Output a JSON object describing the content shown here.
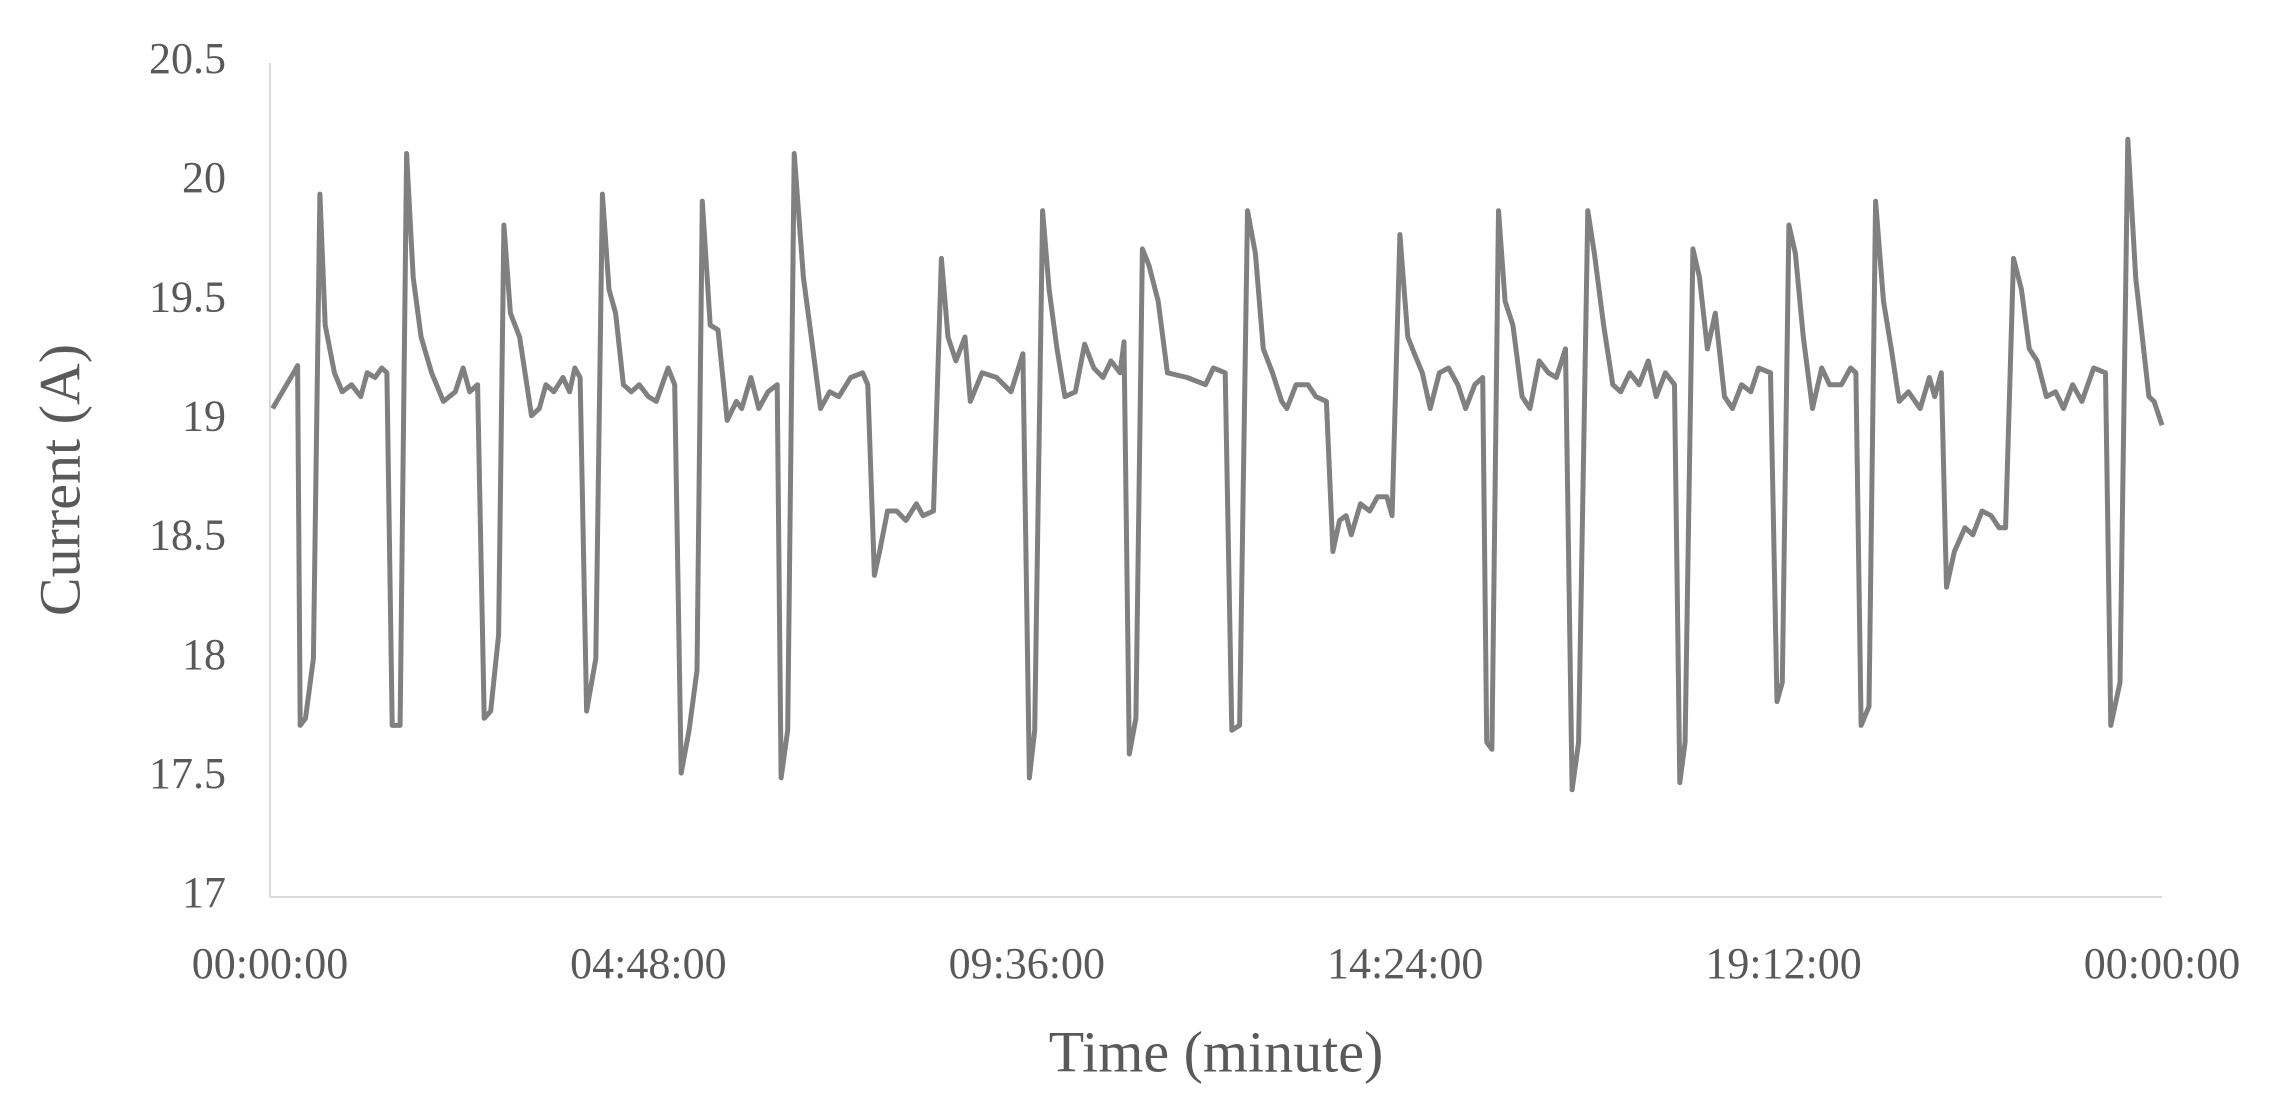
{
  "chart_data": {
    "type": "line",
    "x_label": "Time (minute)",
    "y_label": "Current (A)",
    "xlim": [
      0,
      1440
    ],
    "xticks": [
      {
        "value": 0,
        "label": "00:00:00"
      },
      {
        "value": 288,
        "label": "04:48:00"
      },
      {
        "value": 576,
        "label": "09:36:00"
      },
      {
        "value": 864,
        "label": "14:24:00"
      },
      {
        "value": 1152,
        "label": "19:12:00"
      },
      {
        "value": 1440,
        "label": "00:00:00"
      }
    ],
    "ylim": [
      17,
      20.5
    ],
    "yticks": [
      17,
      17.5,
      18,
      18.5,
      19,
      19.5,
      20,
      20.5
    ],
    "grid": false,
    "series": [
      {
        "name": "Current",
        "color": "#808080",
        "x": [
          2,
          18,
          21,
          23,
          27,
          33,
          38,
          42,
          49,
          55,
          62,
          69,
          74,
          80,
          85,
          89,
          93,
          99,
          104,
          109,
          115,
          123,
          132,
          141,
          147,
          152,
          158,
          163,
          168,
          174,
          178,
          183,
          190,
          199,
          205,
          210,
          216,
          223,
          228,
          232,
          236,
          241,
          248,
          253,
          258,
          263,
          269,
          275,
          281,
          288,
          294,
          303,
          308,
          313,
          319,
          325,
          329,
          335,
          341,
          348,
          355,
          359,
          366,
          372,
          379,
          386,
          389,
          394,
          399,
          406,
          412,
          419,
          426,
          433,
          442,
          451,
          455,
          460,
          464,
          470,
          477,
          484,
          492,
          497,
          505,
          511,
          516,
          522,
          529,
          533,
          542,
          553,
          564,
          573,
          578,
          582,
          588,
          593,
          599,
          605,
          613,
          620,
          627,
          634,
          640,
          647,
          650,
          654,
          659,
          664,
          669,
          676,
          683,
          698,
          712,
          718,
          727,
          732,
          738,
          744,
          750,
          756,
          763,
          770,
          774,
          781,
          790,
          796,
          804,
          809,
          814,
          819,
          823,
          830,
          837,
          843,
          850,
          854,
          860,
          866,
          871,
          877,
          883,
          890,
          897,
          904,
          910,
          917,
          923,
          926,
          930,
          935,
          940,
          946,
          953,
          959,
          966,
          973,
          979,
          986,
          991,
          996,
          1003,
          1008,
          1015,
          1022,
          1028,
          1035,
          1042,
          1049,
          1055,
          1062,
          1069,
          1073,
          1077,
          1083,
          1088,
          1094,
          1100,
          1107,
          1113,
          1120,
          1127,
          1133,
          1142,
          1147,
          1151,
          1156,
          1161,
          1167,
          1174,
          1181,
          1187,
          1196,
          1203,
          1207,
          1211,
          1217,
          1222,
          1228,
          1234,
          1240,
          1247,
          1256,
          1263,
          1267,
          1272,
          1276,
          1282,
          1290,
          1296,
          1303,
          1310,
          1316,
          1321,
          1327,
          1333,
          1339,
          1345,
          1352,
          1359,
          1365,
          1372,
          1379,
          1388,
          1397,
          1401,
          1408,
          1414,
          1420,
          1425,
          1430,
          1434,
          1440
        ],
        "values": [
          19.05,
          19.2,
          19.23,
          17.72,
          17.75,
          18.0,
          19.95,
          19.4,
          19.2,
          19.12,
          19.15,
          19.1,
          19.2,
          19.18,
          19.22,
          19.2,
          17.72,
          17.72,
          20.12,
          19.6,
          19.35,
          19.2,
          19.08,
          19.12,
          19.22,
          19.12,
          19.15,
          17.75,
          17.78,
          18.1,
          19.82,
          19.45,
          19.35,
          19.02,
          19.05,
          19.15,
          19.12,
          19.18,
          19.12,
          19.22,
          19.18,
          17.78,
          18.0,
          19.95,
          19.55,
          19.45,
          19.15,
          19.12,
          19.15,
          19.1,
          19.08,
          19.22,
          19.15,
          17.52,
          17.7,
          17.95,
          19.92,
          19.4,
          19.38,
          19.0,
          19.08,
          19.05,
          19.18,
          19.05,
          19.12,
          19.15,
          17.5,
          17.7,
          20.12,
          19.6,
          19.35,
          19.05,
          19.12,
          19.1,
          19.18,
          19.2,
          19.15,
          18.35,
          18.45,
          18.62,
          18.62,
          18.58,
          18.65,
          18.6,
          18.62,
          19.68,
          19.35,
          19.25,
          19.35,
          19.08,
          19.2,
          19.18,
          19.12,
          19.28,
          17.5,
          17.7,
          19.88,
          19.55,
          19.3,
          19.1,
          19.12,
          19.32,
          19.22,
          19.18,
          19.25,
          19.2,
          19.33,
          17.6,
          17.75,
          19.72,
          19.65,
          19.5,
          19.2,
          19.18,
          19.15,
          19.22,
          19.2,
          17.7,
          17.72,
          19.88,
          19.7,
          19.3,
          19.2,
          19.08,
          19.05,
          19.15,
          19.15,
          19.1,
          19.08,
          18.45,
          18.58,
          18.6,
          18.52,
          18.65,
          18.62,
          18.68,
          18.68,
          18.6,
          19.78,
          19.35,
          19.28,
          19.2,
          19.05,
          19.2,
          19.22,
          19.15,
          19.05,
          19.15,
          19.18,
          17.65,
          17.62,
          19.88,
          19.5,
          19.4,
          19.1,
          19.05,
          19.25,
          19.2,
          19.18,
          19.3,
          17.45,
          17.65,
          19.88,
          19.7,
          19.4,
          19.15,
          19.12,
          19.2,
          19.15,
          19.25,
          19.1,
          19.2,
          19.15,
          17.48,
          17.65,
          19.72,
          19.6,
          19.3,
          19.45,
          19.1,
          19.05,
          19.15,
          19.12,
          19.22,
          19.2,
          17.82,
          17.9,
          19.82,
          19.7,
          19.35,
          19.05,
          19.22,
          19.15,
          19.15,
          19.22,
          19.2,
          17.72,
          17.8,
          19.92,
          19.5,
          19.3,
          19.08,
          19.12,
          19.05,
          19.18,
          19.1,
          19.2,
          18.3,
          18.45,
          18.55,
          18.52,
          18.62,
          18.6,
          18.55,
          18.55,
          19.68,
          19.55,
          19.3,
          19.25,
          19.1,
          19.12,
          19.05,
          19.15,
          19.08,
          19.22,
          19.2,
          17.72,
          17.9,
          20.18,
          19.6,
          19.35,
          19.1,
          19.08,
          18.98
        ]
      }
    ]
  }
}
